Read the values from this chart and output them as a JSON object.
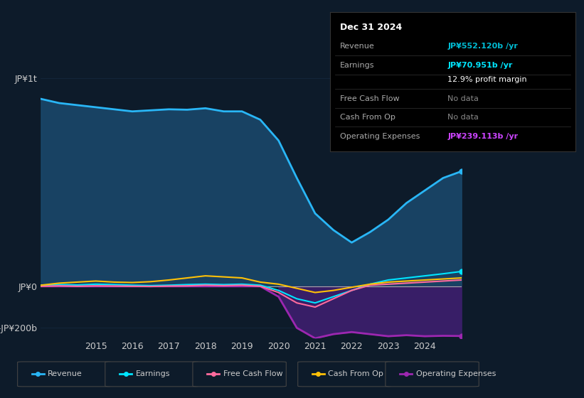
{
  "background_color": "#0d1b2a",
  "plot_bg_color": "#0d1b2a",
  "title_box": {
    "date": "Dec 31 2024",
    "rows": [
      {
        "label": "Revenue",
        "value": "JP¥552.120b /yr",
        "value_color": "#00bcd4"
      },
      {
        "label": "Earnings",
        "value": "JP¥70.951b /yr",
        "value_color": "#00e5ff"
      },
      {
        "label": "",
        "value": "12.9% profit margin",
        "value_color": "#ffffff"
      },
      {
        "label": "Free Cash Flow",
        "value": "No data",
        "value_color": "#888888"
      },
      {
        "label": "Cash From Op",
        "value": "No data",
        "value_color": "#888888"
      },
      {
        "label": "Operating Expenses",
        "value": "JP¥239.113b /yr",
        "value_color": "#cc44ff"
      }
    ]
  },
  "years": [
    2013.5,
    2014,
    2014.5,
    2015,
    2015.5,
    2016,
    2016.5,
    2017,
    2017.5,
    2018,
    2018.5,
    2019,
    2019.5,
    2020,
    2020.5,
    2021,
    2021.5,
    2022,
    2022.5,
    2023,
    2023.5,
    2024,
    2024.5,
    2025
  ],
  "revenue": [
    900,
    880,
    870,
    860,
    850,
    840,
    845,
    850,
    848,
    855,
    840,
    840,
    800,
    700,
    520,
    350,
    270,
    210,
    260,
    320,
    400,
    460,
    520,
    552
  ],
  "earnings": [
    5,
    8,
    6,
    10,
    8,
    5,
    3,
    5,
    8,
    10,
    8,
    10,
    5,
    -20,
    -60,
    -80,
    -50,
    -20,
    10,
    30,
    40,
    50,
    60,
    71
  ],
  "free_cash_flow": [
    0,
    2,
    0,
    2,
    1,
    0,
    -1,
    1,
    2,
    5,
    3,
    5,
    0,
    -30,
    -80,
    -100,
    -60,
    -20,
    5,
    10,
    15,
    20,
    25,
    30
  ],
  "cash_from_op": [
    5,
    15,
    20,
    25,
    20,
    18,
    22,
    30,
    40,
    50,
    45,
    40,
    20,
    10,
    -10,
    -30,
    -20,
    -5,
    10,
    20,
    25,
    30,
    35,
    40
  ],
  "operating_expenses": [
    0,
    0,
    0,
    0,
    0,
    0,
    0,
    0,
    0,
    0,
    0,
    0,
    0,
    -50,
    -200,
    -250,
    -230,
    -220,
    -230,
    -240,
    -235,
    -240,
    -238,
    -239
  ],
  "ylim": [
    -250,
    1050
  ],
  "yticks": [
    -200,
    0,
    1000
  ],
  "ytick_labels": [
    "-JP¥200b",
    "JP¥0",
    "JP¥1t"
  ],
  "xlabel_years": [
    2015,
    2016,
    2017,
    2018,
    2019,
    2020,
    2021,
    2022,
    2023,
    2024
  ],
  "colors": {
    "revenue_line": "#29b6f6",
    "revenue_fill": "#1a4a6e",
    "earnings_line": "#00e5ff",
    "free_cash_flow_line": "#ff6b9d",
    "cash_from_op_line": "#ffc107",
    "op_expenses_fill_top": "#9c27b0",
    "op_expenses_fill_bottom": "#3d1f6e",
    "zero_line": "#aaaaaa",
    "grid_line": "#1e3a5a",
    "text_color": "#cccccc",
    "axis_label_color": "#cccccc"
  },
  "legend_labels": [
    "Revenue",
    "Earnings",
    "Free Cash Flow",
    "Cash From Op",
    "Operating Expenses"
  ],
  "legend_colors": [
    "#29b6f6",
    "#00e5ff",
    "#ff6b9d",
    "#ffc107",
    "#9c27b0"
  ]
}
